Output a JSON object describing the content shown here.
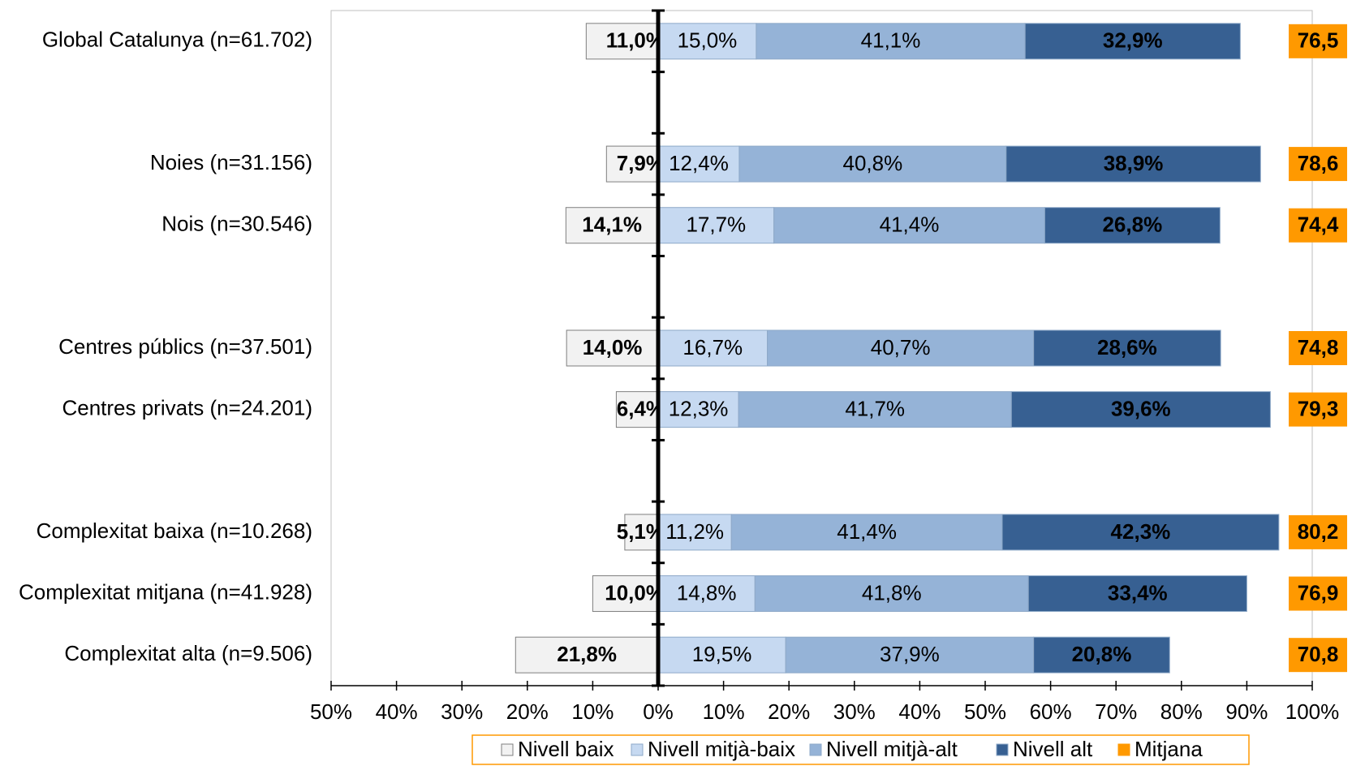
{
  "chart_data": {
    "type": "diverging-bar",
    "categories": [
      "Global Catalunya (n=61.702)",
      null,
      "Noies (n=31.156)",
      "Nois (n=30.546)",
      null,
      "Centres públics (n=37.501)",
      "Centres privats (n=24.201)",
      null,
      "Complexitat baixa (n=10.268)",
      "Complexitat mitjana (n=41.928)",
      "Complexitat alta (n=9.506)"
    ],
    "series": [
      {
        "name": "Nivell baix",
        "color": "#f2f2f2",
        "values": [
          -11.0,
          null,
          -7.9,
          -14.1,
          null,
          -14.0,
          -6.4,
          null,
          -5.1,
          -10.0,
          -21.8
        ],
        "value_labels": [
          "11,0%",
          null,
          "7,9%",
          "14,1%",
          null,
          "14,0%",
          "6,4%",
          null,
          "5,1%",
          "10,0%",
          "21,8%"
        ]
      },
      {
        "name": "Nivell mitjà-baix",
        "color": "#c6d9f1",
        "values": [
          15.0,
          null,
          12.4,
          17.7,
          null,
          16.7,
          12.3,
          null,
          11.2,
          14.8,
          19.5
        ],
        "value_labels": [
          "15,0%",
          null,
          "12,4%",
          "17,7%",
          null,
          "16,7%",
          "12,3%",
          null,
          "11,2%",
          "14,8%",
          "19,5%"
        ]
      },
      {
        "name": "Nivell mitjà-alt",
        "color": "#95b3d7",
        "values": [
          41.1,
          null,
          40.8,
          41.4,
          null,
          40.7,
          41.7,
          null,
          41.4,
          41.8,
          37.9
        ],
        "value_labels": [
          "41,1%",
          null,
          "40,8%",
          "41,4%",
          null,
          "40,7%",
          "41,7%",
          null,
          "41,4%",
          "41,8%",
          "37,9%"
        ]
      },
      {
        "name": "Nivell alt",
        "color": "#376092",
        "values": [
          32.9,
          null,
          38.9,
          26.8,
          null,
          28.6,
          39.6,
          null,
          42.3,
          33.4,
          20.8
        ],
        "value_labels": [
          "32,9%",
          null,
          "38,9%",
          "26,8%",
          null,
          "28,6%",
          "39,6%",
          null,
          "42,3%",
          "33,4%",
          "20,8%"
        ]
      }
    ],
    "means": {
      "name": "Mitjana",
      "color": "#ff9900",
      "values": [
        76.5,
        null,
        78.6,
        74.4,
        null,
        74.8,
        79.3,
        null,
        80.2,
        76.9,
        70.8
      ],
      "value_labels": [
        "76,5",
        null,
        "78,6",
        "74,4",
        null,
        "74,8",
        "79,3",
        null,
        "80,2",
        "76,9",
        "70,8"
      ]
    },
    "xlim": [
      -50,
      100
    ],
    "xticks": [
      {
        "value": -50,
        "label": "50%"
      },
      {
        "value": -40,
        "label": "40%"
      },
      {
        "value": -30,
        "label": "30%"
      },
      {
        "value": -20,
        "label": "20%"
      },
      {
        "value": -10,
        "label": "10%"
      },
      {
        "value": 0,
        "label": "0%"
      },
      {
        "value": 10,
        "label": "10%"
      },
      {
        "value": 20,
        "label": "20%"
      },
      {
        "value": 30,
        "label": "30%"
      },
      {
        "value": 40,
        "label": "40%"
      },
      {
        "value": 50,
        "label": "50%"
      },
      {
        "value": 60,
        "label": "60%"
      },
      {
        "value": 70,
        "label": "70%"
      },
      {
        "value": 80,
        "label": "80%"
      },
      {
        "value": 90,
        "label": "90%"
      },
      {
        "value": 100,
        "label": "100%"
      }
    ],
    "legend": "bottom"
  }
}
